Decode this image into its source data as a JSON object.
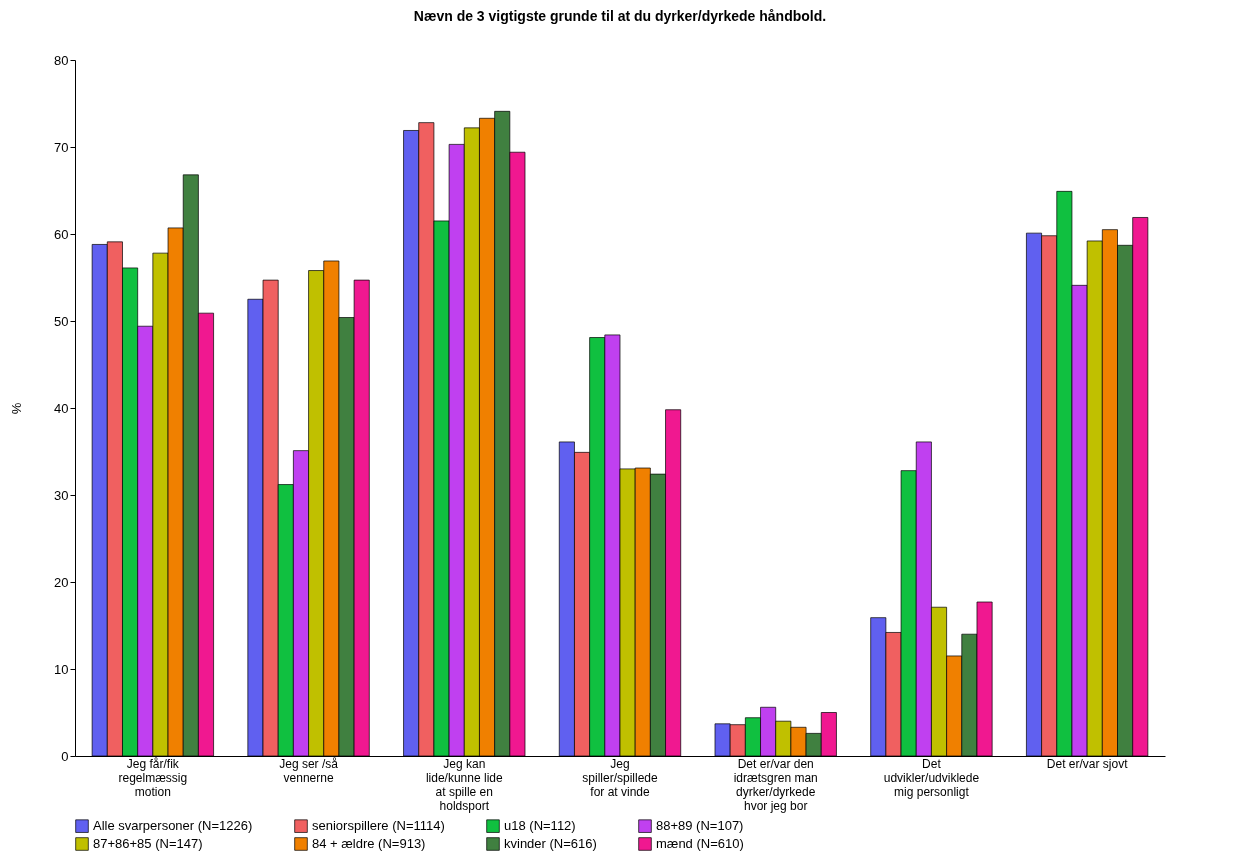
{
  "chart_data": {
    "type": "bar",
    "title": "Nævn de 3 vigtigste grunde til at du dyrker/dyrkede håndbold.",
    "ylabel": "%",
    "categories": [
      "Jeg får/fik regelmæssig motion",
      "Jeg ser /så vennerne",
      "Jeg kan lide/kunne lide at spille en holdsport",
      "Jeg spiller/spillede for at vinde",
      "Det er/var den idrætsgren man dyrker/dyrkede hvor jeg bor",
      "Det udvikler/udviklede mig personligt",
      "Det er/var sjovt"
    ],
    "series": [
      {
        "name": "Alle svarpersoner (N=1226)",
        "color": "#6060f0",
        "values": [
          58.8,
          52.5,
          71.9,
          36.1,
          3.7,
          15.9,
          60.1
        ]
      },
      {
        "name": "seniorspillere (N=1114)",
        "color": "#f06060",
        "values": [
          59.1,
          54.7,
          72.8,
          34.9,
          3.6,
          14.2,
          59.8
        ]
      },
      {
        "name": "u18 (N=112)",
        "color": "#10c040",
        "values": [
          56.1,
          31.2,
          61.5,
          48.1,
          4.4,
          32.8,
          64.9
        ]
      },
      {
        "name": "88+89 (N=107)",
        "color": "#c040f0",
        "values": [
          49.4,
          35.1,
          70.3,
          48.4,
          5.6,
          36.1,
          54.1
        ]
      },
      {
        "name": "87+86+85 (N=147)",
        "color": "#c0c000",
        "values": [
          57.8,
          55.8,
          72.2,
          33.0,
          4.0,
          17.1,
          59.2
        ]
      },
      {
        "name": "84 + ældre (N=913)",
        "color": "#f08000",
        "values": [
          60.7,
          56.9,
          73.3,
          33.1,
          3.3,
          11.5,
          60.5
        ]
      },
      {
        "name": "kvinder (N=616)",
        "color": "#408040",
        "values": [
          66.8,
          50.4,
          74.1,
          32.4,
          2.6,
          14.0,
          58.7
        ]
      },
      {
        "name": "mænd (N=610)",
        "color": "#f01890",
        "values": [
          50.9,
          54.7,
          69.4,
          39.8,
          5.0,
          17.7,
          61.9
        ]
      }
    ],
    "ylim": [
      0,
      80
    ],
    "yticks": [
      0,
      10,
      20,
      30,
      40,
      50,
      60,
      70,
      80
    ],
    "grid": false,
    "legend": "bottom"
  }
}
